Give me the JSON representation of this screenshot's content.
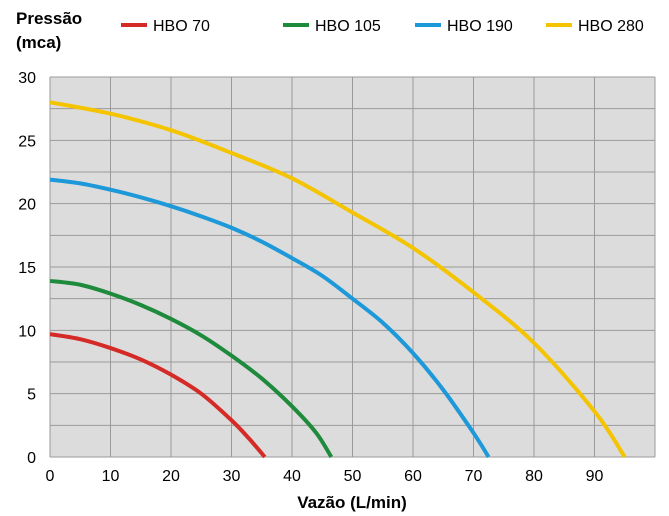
{
  "chart_data": {
    "type": "line",
    "title": "",
    "ylabel_lines": [
      "Pressão",
      "(mca)"
    ],
    "xlabel": "Vazão (L/min)",
    "xlim": [
      0,
      100
    ],
    "ylim": [
      0,
      30
    ],
    "x_ticks": [
      0,
      10,
      20,
      30,
      40,
      50,
      60,
      70,
      80,
      90
    ],
    "y_ticks": [
      0,
      5,
      10,
      15,
      20,
      25,
      30
    ],
    "grid": true,
    "legend_position": "top",
    "series": [
      {
        "name": "HBO 70",
        "color": "#d42b27",
        "x": [
          0,
          5,
          10,
          15,
          20,
          25,
          30,
          33,
          35.5
        ],
        "y": [
          9.7,
          9.3,
          8.6,
          7.7,
          6.5,
          5.0,
          2.9,
          1.4,
          0
        ]
      },
      {
        "name": "HBO 105",
        "color": "#1e8a3b",
        "x": [
          0,
          5,
          10,
          15,
          20,
          25,
          30,
          35,
          40,
          44,
          46.5
        ],
        "y": [
          13.9,
          13.6,
          12.9,
          12.0,
          10.9,
          9.6,
          8.0,
          6.2,
          4.0,
          1.9,
          0
        ]
      },
      {
        "name": "HBO 190",
        "color": "#1d99d9",
        "x": [
          0,
          5,
          10,
          15,
          20,
          25,
          30,
          35,
          40,
          45,
          50,
          55,
          60,
          65,
          70,
          72.5
        ],
        "y": [
          21.9,
          21.6,
          21.1,
          20.5,
          19.8,
          19.0,
          18.1,
          17.0,
          15.7,
          14.3,
          12.5,
          10.6,
          8.2,
          5.3,
          1.9,
          0
        ]
      },
      {
        "name": "HBO 280",
        "color": "#f5c400",
        "x": [
          0,
          10,
          20,
          30,
          40,
          50,
          60,
          70,
          80,
          90,
          95
        ],
        "y": [
          28.0,
          27.1,
          25.8,
          24.0,
          22.0,
          19.3,
          16.5,
          13.0,
          9.0,
          3.6,
          0
        ]
      }
    ],
    "colors": {
      "plot_background": "#dcdcdc",
      "grid": "#9a9a9a"
    }
  }
}
